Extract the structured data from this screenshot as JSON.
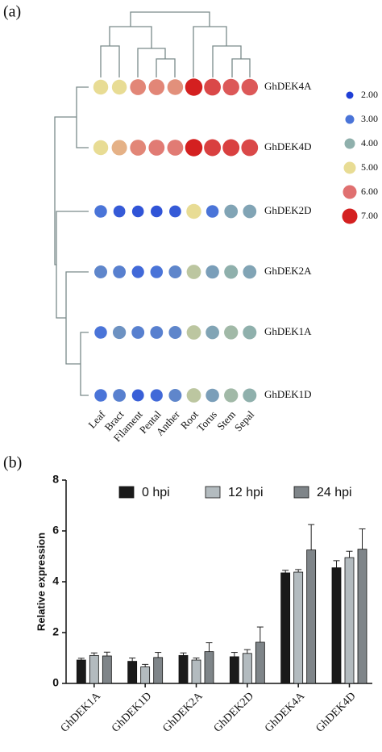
{
  "chart_data": [
    {
      "type": "dotmatrix",
      "panel_label": "(a)",
      "rows": [
        "GhDEK4A",
        "GhDEK4D",
        "GhDEK2D",
        "GhDEK2A",
        "GhDEK1A",
        "GhDEK1D"
      ],
      "columns": [
        "Leaf",
        "Bract",
        "Filament",
        "Pental",
        "Anther",
        "Root",
        "Torus",
        "Stem",
        "Sepal"
      ],
      "values": [
        [
          5.0,
          5.0,
          5.8,
          5.8,
          5.7,
          7.0,
          6.5,
          6.3,
          6.3
        ],
        [
          5.0,
          5.4,
          5.8,
          5.9,
          5.9,
          7.0,
          6.6,
          6.6,
          6.5
        ],
        [
          3.0,
          2.5,
          2.4,
          2.4,
          2.5,
          5.0,
          3.0,
          3.8,
          3.8
        ],
        [
          3.3,
          3.2,
          2.8,
          3.0,
          3.3,
          4.5,
          3.7,
          4.0,
          3.8
        ],
        [
          3.0,
          3.5,
          3.2,
          3.2,
          3.3,
          4.5,
          3.8,
          4.2,
          4.0
        ],
        [
          3.0,
          3.2,
          2.6,
          2.8,
          3.3,
          4.5,
          3.7,
          4.2,
          4.0
        ]
      ],
      "legend_ticks": [
        {
          "value": 2,
          "label": "2.00"
        },
        {
          "value": 3,
          "label": "3.00"
        },
        {
          "value": 4,
          "label": "4.00"
        },
        {
          "value": 5,
          "label": "5.00"
        },
        {
          "value": 6,
          "label": "6.00"
        },
        {
          "value": 7,
          "label": "7.00"
        }
      ],
      "legend_colors": [
        "#1f3fd6",
        "#4a74d8",
        "#8fb0ac",
        "#e8dc94",
        "#e07070",
        "#d42020"
      ]
    },
    {
      "type": "bar",
      "panel_label": "(b)",
      "ylabel": "Relative expression",
      "categories": [
        "GhDEK1A",
        "GhDEK1D",
        "GhDEK2A",
        "GhDEK2D",
        "GhDEK4A",
        "GhDEK4D"
      ],
      "series": [
        {
          "name": "0 hpi",
          "color": "#1a1a1a",
          "values": [
            0.92,
            0.87,
            1.1,
            1.05,
            4.35,
            4.55
          ],
          "errors": [
            0.07,
            0.13,
            0.1,
            0.17,
            0.1,
            0.28
          ]
        },
        {
          "name": "12 hpi",
          "color": "#b3bbbf",
          "values": [
            1.1,
            0.65,
            0.92,
            1.18,
            4.38,
            4.95
          ],
          "errors": [
            0.1,
            0.1,
            0.08,
            0.15,
            0.1,
            0.25
          ]
        },
        {
          "name": "24 hpi",
          "color": "#7f8589",
          "values": [
            1.08,
            1.02,
            1.25,
            1.62,
            5.25,
            5.28
          ],
          "errors": [
            0.15,
            0.2,
            0.35,
            0.6,
            1.0,
            0.8
          ]
        }
      ],
      "ylim": [
        0,
        8
      ],
      "yticks": [
        0,
        2,
        4,
        6,
        8
      ]
    }
  ]
}
